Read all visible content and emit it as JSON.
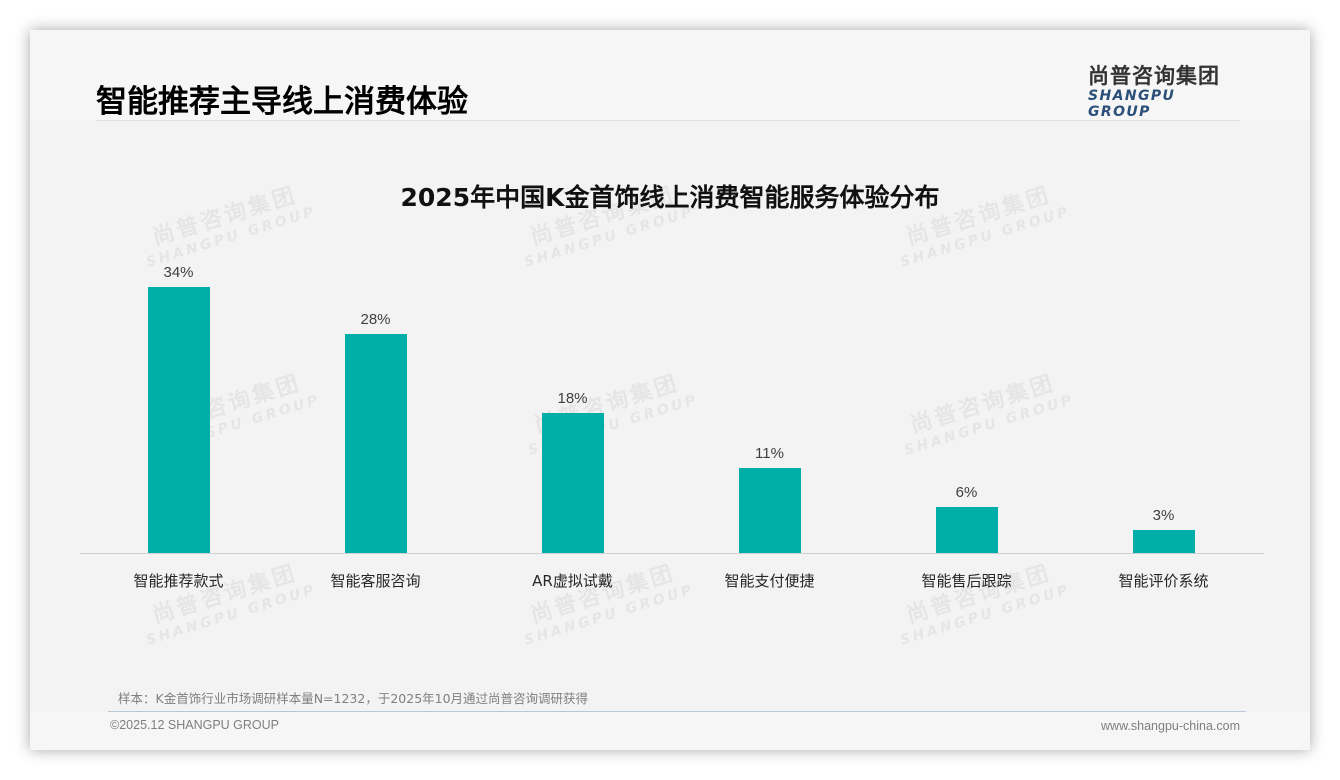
{
  "header": {
    "page_title": "智能推荐主导线上消费体验",
    "logo_cn": "尚普咨询集团",
    "logo_en": "SHANGPU GROUP"
  },
  "watermark": {
    "cn": "尚普咨询集团",
    "en": "SHANGPU GROUP"
  },
  "colors": {
    "bar": "#00aea8",
    "title": "#111111",
    "logo_en": "#2a4f78",
    "background": "#f3f3f3"
  },
  "chart_data": {
    "type": "bar",
    "title": "2025年中国K金首饰线上消费智能服务体验分布",
    "categories": [
      "智能推荐款式",
      "智能客服咨询",
      "AR虚拟试戴",
      "智能支付便捷",
      "智能售后跟踪",
      "智能评价系统"
    ],
    "values": [
      34,
      28,
      18,
      11,
      6,
      3
    ],
    "value_labels": [
      "34%",
      "28%",
      "18%",
      "11%",
      "6%",
      "3%"
    ],
    "unit": "%",
    "xlabel": "",
    "ylabel": "",
    "ylim": [
      0,
      36
    ],
    "grid": false,
    "legend": null
  },
  "footer": {
    "footnote": "样本：K金首饰行业市场调研样本量N=1232，于2025年10月通过尚普咨询调研获得",
    "copyright": "©2025.12 SHANGPU GROUP",
    "website": "www.shangpu-china.com"
  }
}
